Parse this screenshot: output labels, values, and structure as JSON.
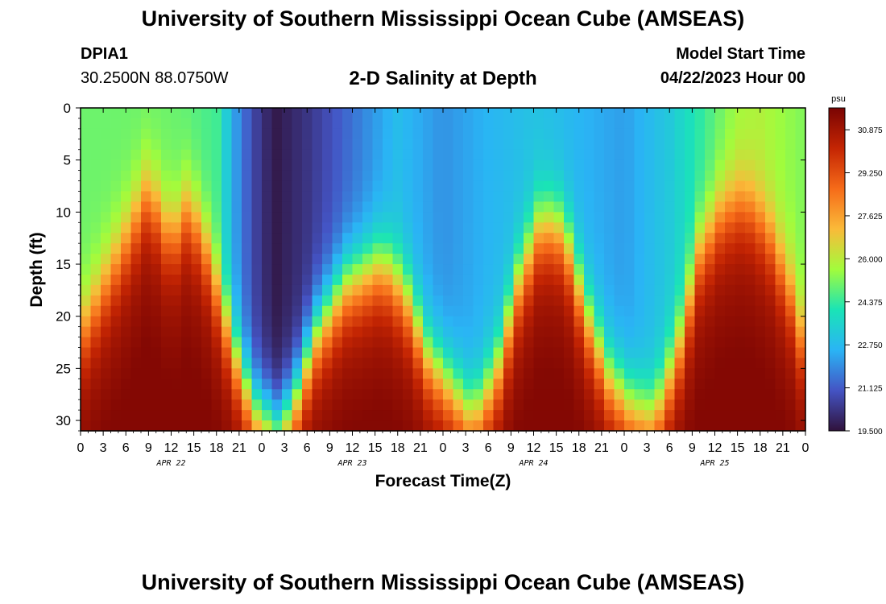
{
  "header": {
    "title": "University of Southern Mississippi Ocean Cube (AMSEAS)",
    "station": "DPIA1",
    "coords": "30.2500N  88.0750W",
    "chart_title": "2-D Salinity at Depth",
    "start_label": "Model Start Time",
    "start_value": "04/22/2023 Hour 00"
  },
  "footer": {
    "title": "University of Southern Mississippi Ocean Cube (AMSEAS)"
  },
  "colors": {
    "colormap": [
      "#30123b",
      "#4454c4",
      "#2ab4f5",
      "#1ae4b6",
      "#a2fc3c",
      "#faba39",
      "#f66b19",
      "#c42503",
      "#7a0403"
    ]
  },
  "chart_data": {
    "type": "heatmap",
    "title": "2-D Salinity at Depth",
    "xlabel": "Forecast Time(Z)",
    "ylabel": "Depth (ft)",
    "xlim": [
      0,
      96
    ],
    "ylim": [
      0,
      31
    ],
    "x_ticks": [
      0,
      3,
      6,
      9,
      12,
      15,
      18,
      21,
      24,
      27,
      30,
      33,
      36,
      39,
      42,
      45,
      48,
      51,
      54,
      57,
      60,
      63,
      66,
      69,
      72,
      75,
      78,
      81,
      84,
      87,
      90,
      93,
      96
    ],
    "x_tick_labels": [
      "0",
      "3",
      "6",
      "9",
      "12",
      "15",
      "18",
      "21",
      "0",
      "3",
      "6",
      "9",
      "12",
      "15",
      "18",
      "21",
      "0",
      "3",
      "6",
      "9",
      "12",
      "15",
      "18",
      "21",
      "0",
      "3",
      "6",
      "9",
      "12",
      "15",
      "18",
      "21",
      "0"
    ],
    "y_ticks": [
      0,
      5,
      10,
      15,
      20,
      25,
      30
    ],
    "y_tick_labels": [
      "0",
      "5",
      "10",
      "15",
      "20",
      "25",
      "30"
    ],
    "date_labels": [
      {
        "x": 12,
        "label": "APR 22"
      },
      {
        "x": 36,
        "label": "APR 23"
      },
      {
        "x": 60,
        "label": "APR 24"
      },
      {
        "x": 84,
        "label": "APR 25"
      }
    ],
    "colorbar": {
      "unit": "psu",
      "min": 19.5,
      "max": 31.7,
      "tick_values": [
        30.875,
        29.25,
        27.625,
        26.0,
        24.375,
        22.75,
        21.125,
        19.5
      ],
      "tick_labels": [
        "30.875",
        "29.250",
        "27.625",
        "26.000",
        "24.375",
        "22.750",
        "21.125",
        "19.500"
      ]
    },
    "surface_salinity": [
      {
        "t": 0,
        "s": 25.0
      },
      {
        "t": 12,
        "s": 25.0
      },
      {
        "t": 18,
        "s": 24.5
      },
      {
        "t": 21,
        "s": 21.8
      },
      {
        "t": 24,
        "s": 20.2
      },
      {
        "t": 26,
        "s": 19.7
      },
      {
        "t": 30,
        "s": 20.3
      },
      {
        "t": 36,
        "s": 21.5
      },
      {
        "t": 42,
        "s": 22.8
      },
      {
        "t": 48,
        "s": 22.0
      },
      {
        "t": 54,
        "s": 22.6
      },
      {
        "t": 60,
        "s": 23.0
      },
      {
        "t": 66,
        "s": 22.6
      },
      {
        "t": 72,
        "s": 22.2
      },
      {
        "t": 78,
        "s": 23.2
      },
      {
        "t": 84,
        "s": 24.8
      },
      {
        "t": 87,
        "s": 25.6
      },
      {
        "t": 90,
        "s": 25.8
      },
      {
        "t": 96,
        "s": 25.2
      }
    ],
    "halocline_depth": [
      {
        "t": 0,
        "d": 22
      },
      {
        "t": 6,
        "d": 13
      },
      {
        "t": 9,
        "d": 8
      },
      {
        "t": 12,
        "d": 13
      },
      {
        "t": 14,
        "d": 10
      },
      {
        "t": 16,
        "d": 12
      },
      {
        "t": 19,
        "d": 20
      },
      {
        "t": 21,
        "d": 25
      },
      {
        "t": 23,
        "d": 29
      },
      {
        "t": 26,
        "d": 31
      },
      {
        "t": 28,
        "d": 29
      },
      {
        "t": 31,
        "d": 22
      },
      {
        "t": 35,
        "d": 17
      },
      {
        "t": 40,
        "d": 15
      },
      {
        "t": 43,
        "d": 18
      },
      {
        "t": 46,
        "d": 24
      },
      {
        "t": 49,
        "d": 27
      },
      {
        "t": 52,
        "d": 30
      },
      {
        "t": 55,
        "d": 26
      },
      {
        "t": 58,
        "d": 17
      },
      {
        "t": 61,
        "d": 11
      },
      {
        "t": 64,
        "d": 12
      },
      {
        "t": 67,
        "d": 20
      },
      {
        "t": 70,
        "d": 26
      },
      {
        "t": 73,
        "d": 29
      },
      {
        "t": 76,
        "d": 30
      },
      {
        "t": 79,
        "d": 24
      },
      {
        "t": 82,
        "d": 14
      },
      {
        "t": 85,
        "d": 10
      },
      {
        "t": 88,
        "d": 9
      },
      {
        "t": 91,
        "d": 12
      },
      {
        "t": 94,
        "d": 18
      },
      {
        "t": 96,
        "d": 24
      }
    ],
    "deep_salinity": 30.9,
    "max_salinity": 31.5
  }
}
